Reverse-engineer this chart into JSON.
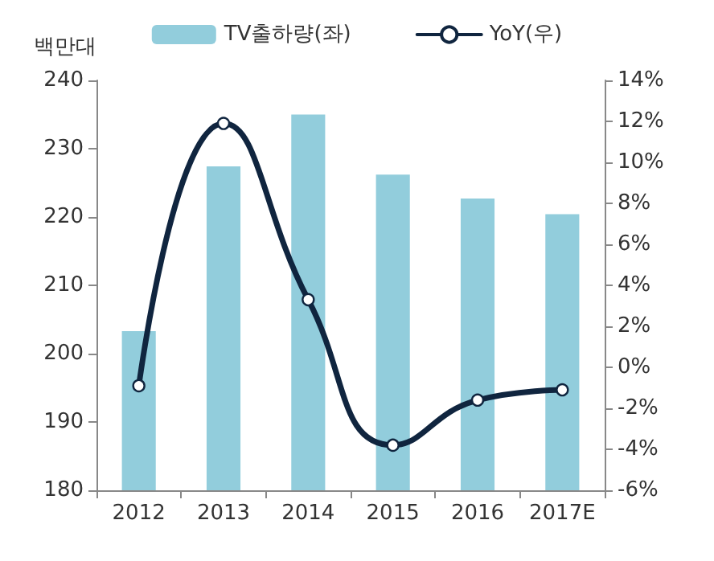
{
  "chart_data": {
    "type": "bar",
    "ylabel": "백만대",
    "categories": [
      "2012",
      "2013",
      "2014",
      "2015",
      "2016",
      "2017E"
    ],
    "series": [
      {
        "name": "TV출하량(좌)",
        "color": "#92cddc",
        "values": [
          203.3,
          227.4,
          235,
          226.2,
          222.7,
          220.4
        ]
      },
      {
        "name": "YoY(우)",
        "type": "line",
        "axis": "y2",
        "color": "#10253f",
        "values": [
          -0.9,
          11.9,
          3.3,
          -3.8,
          -1.6,
          -1.1
        ]
      }
    ],
    "ylim": [
      180,
      240
    ],
    "yticks": [
      180,
      190,
      200,
      210,
      220,
      230,
      240
    ],
    "y2lim": [
      -6,
      14
    ],
    "y2ticks": [
      {
        "value": -6,
        "label": "-6%"
      },
      {
        "value": -4,
        "label": "-4%"
      },
      {
        "value": -2,
        "label": "-2%"
      },
      {
        "value": 0,
        "label": "0%"
      },
      {
        "value": 2,
        "label": "2%"
      },
      {
        "value": 4,
        "label": "4%"
      },
      {
        "value": 6,
        "label": "6%"
      },
      {
        "value": 8,
        "label": "8%"
      },
      {
        "value": 10,
        "label": "10%"
      },
      {
        "value": 12,
        "label": "12%"
      },
      {
        "value": 14,
        "label": "14%"
      }
    ],
    "grid": false,
    "legend": "top",
    "marker": "circle"
  }
}
